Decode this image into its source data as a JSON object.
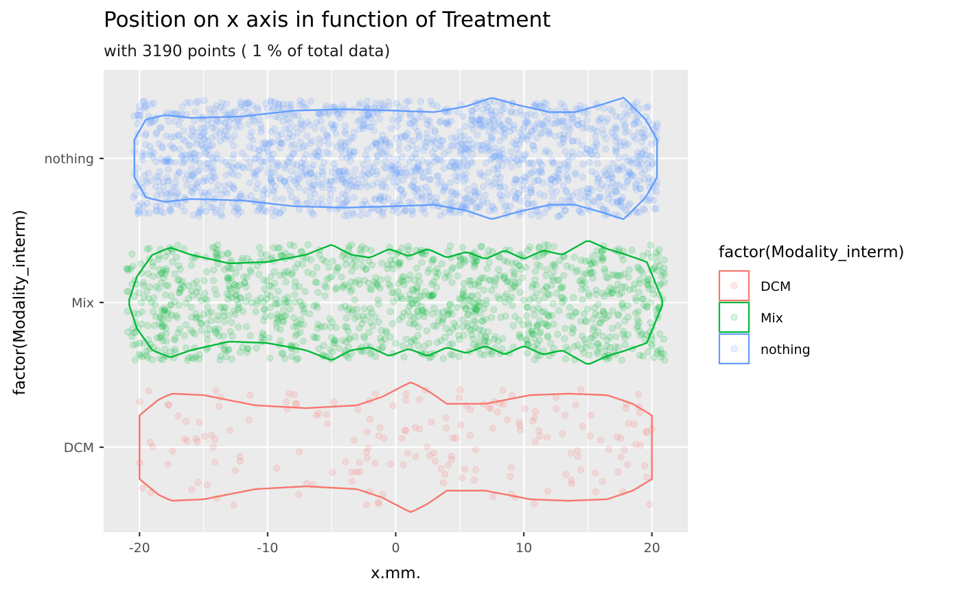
{
  "chart_data": {
    "type": "scatter",
    "subtype": "jittered points with violin outlines",
    "title": "Position on x axis in function of Treatment",
    "subtitle": "with 3190 points ( 1 % of total data)",
    "xlabel": "x.mm.",
    "ylabel": "factor(Modality_interm)",
    "xlim": [
      -22.8,
      22.8
    ],
    "x_ticks": [
      -20,
      -10,
      0,
      10,
      20
    ],
    "x_tick_labels": [
      "-20",
      "-10",
      "0",
      "10",
      "20"
    ],
    "categories": [
      "DCM",
      "Mix",
      "nothing"
    ],
    "grid": true,
    "legend": {
      "title": "factor(Modality_interm)",
      "position": "right",
      "entries": [
        "DCM",
        "Mix",
        "nothing"
      ]
    },
    "series": [
      {
        "name": "DCM",
        "color": "#F8766D",
        "n_points": 190,
        "x_range": [
          -20,
          20
        ],
        "violin_halfwidth_profile": {
          "x": [
            -20,
            -18.5,
            -17.5,
            -15,
            -11,
            -7,
            -3,
            -1,
            0.5,
            1.2,
            2.5,
            4,
            7,
            10.5,
            13.5,
            16.5,
            18.5,
            20
          ],
          "w": [
            0.22,
            0.33,
            0.37,
            0.36,
            0.29,
            0.27,
            0.29,
            0.35,
            0.42,
            0.45,
            0.39,
            0.3,
            0.3,
            0.36,
            0.37,
            0.36,
            0.3,
            0.22
          ]
        }
      },
      {
        "name": "Mix",
        "color": "#00BA38",
        "n_points": 1300,
        "x_range": [
          -21,
          21
        ],
        "violin_halfwidth_profile": {
          "x": [
            -20.8,
            -20.2,
            -19,
            -17.6,
            -16,
            -13,
            -10,
            -7,
            -5,
            -3.5,
            -2,
            -0.5,
            1,
            2.5,
            4,
            5.5,
            7,
            8.5,
            10,
            11.5,
            13,
            15,
            16.5,
            18,
            19.6,
            20.8
          ],
          "w": [
            0.02,
            0.18,
            0.33,
            0.38,
            0.33,
            0.27,
            0.28,
            0.33,
            0.4,
            0.33,
            0.31,
            0.37,
            0.32,
            0.37,
            0.31,
            0.35,
            0.3,
            0.36,
            0.3,
            0.36,
            0.33,
            0.43,
            0.37,
            0.33,
            0.28,
            0.02
          ]
        }
      },
      {
        "name": "nothing",
        "color": "#619CFF",
        "n_points": 1700,
        "x_range": [
          -20.5,
          20.5
        ],
        "violin_halfwidth_profile": {
          "x": [
            -20.4,
            -19.5,
            -18,
            -16,
            -12,
            -8,
            -4,
            0,
            3,
            5.5,
            7.5,
            9.5,
            12,
            14,
            16,
            17.8,
            19.5,
            20.4
          ],
          "w": [
            0.13,
            0.27,
            0.3,
            0.28,
            0.29,
            0.33,
            0.34,
            0.33,
            0.32,
            0.36,
            0.42,
            0.37,
            0.32,
            0.32,
            0.37,
            0.42,
            0.27,
            0.13
          ]
        }
      }
    ]
  }
}
